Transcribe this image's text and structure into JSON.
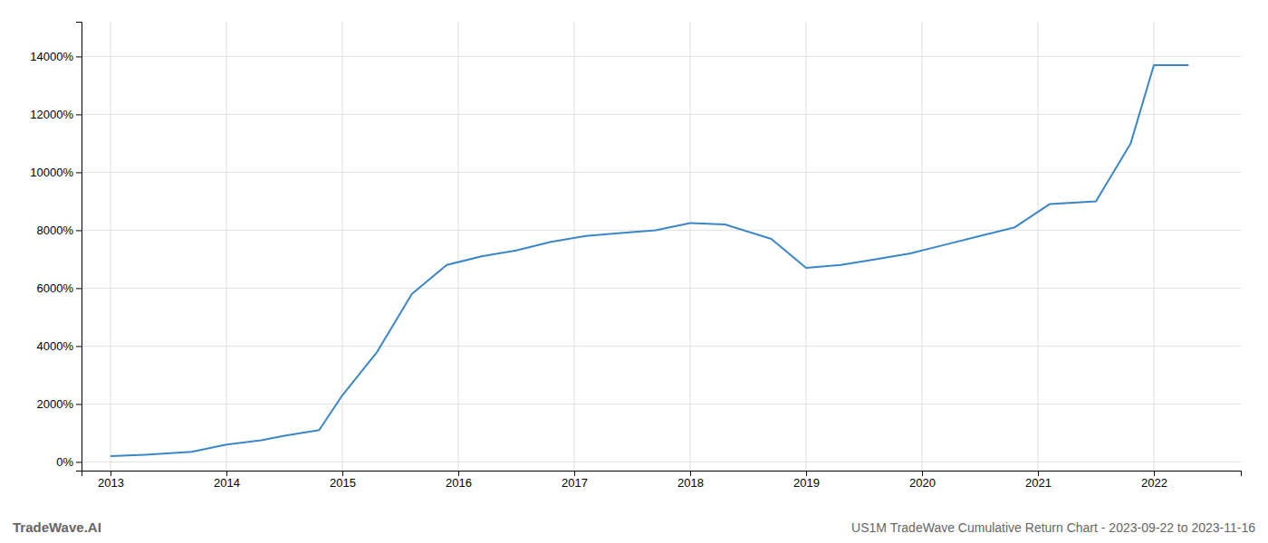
{
  "chart_data": {
    "type": "line",
    "title": "US1M TradeWave Cumulative Return Chart - 2023-09-22 to 2023-11-16",
    "annotations": [
      "TradeWave.AI"
    ],
    "color": "#3a86c8",
    "x": [
      2013.0,
      2013.3,
      2013.7,
      2014.0,
      2014.3,
      2014.5,
      2014.8,
      2015.0,
      2015.3,
      2015.6,
      2015.9,
      2016.2,
      2016.5,
      2016.8,
      2017.1,
      2017.4,
      2017.7,
      2018.0,
      2018.3,
      2018.7,
      2019.0,
      2019.3,
      2019.6,
      2019.9,
      2020.2,
      2020.5,
      2020.8,
      2021.1,
      2021.5,
      2021.8,
      2022.0,
      2022.3
    ],
    "values": [
      200,
      250,
      350,
      600,
      750,
      900,
      1100,
      2300,
      3800,
      5800,
      6800,
      7100,
      7300,
      7600,
      7800,
      7900,
      8000,
      8250,
      8200,
      7700,
      6700,
      6800,
      7000,
      7200,
      7500,
      7800,
      8100,
      8900,
      9000,
      11000,
      13700,
      13700
    ],
    "xlim": [
      2012.75,
      2022.75
    ],
    "xticks": [
      2013,
      2014,
      2015,
      2016,
      2017,
      2018,
      2019,
      2020,
      2021,
      2022
    ],
    "ylim": [
      -300,
      15200
    ],
    "yticks": [
      {
        "value": 0,
        "label": "0%"
      },
      {
        "value": 2000,
        "label": "2000%"
      },
      {
        "value": 4000,
        "label": "4000%"
      },
      {
        "value": 6000,
        "label": "6000%"
      },
      {
        "value": 8000,
        "label": "8000%"
      },
      {
        "value": 10000,
        "label": "10000%"
      },
      {
        "value": 12000,
        "label": "12000%"
      },
      {
        "value": 14000,
        "label": "14000%"
      }
    ],
    "grid": true
  }
}
